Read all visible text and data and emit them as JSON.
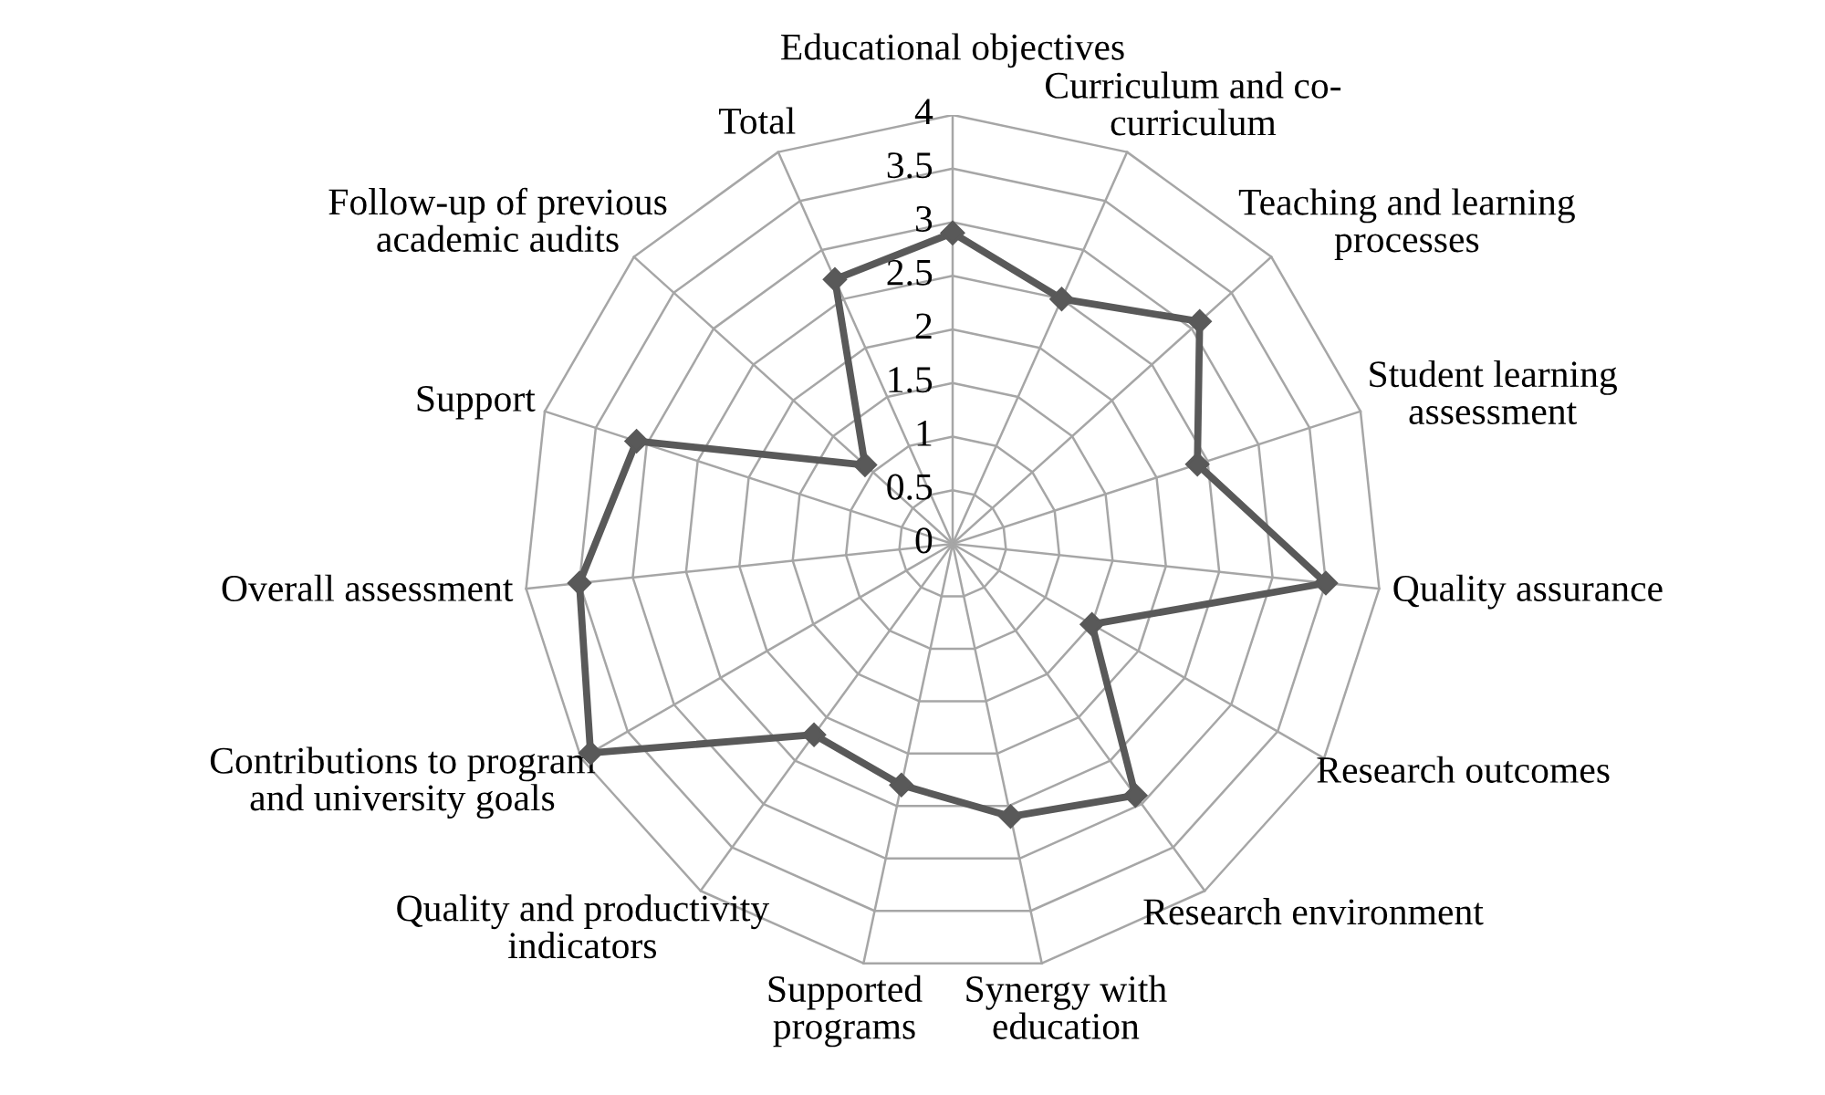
{
  "chart_data": {
    "type": "radar",
    "categories": [
      "Educational objectives",
      "Curriculum and co-\ncurriculum",
      "Teaching and learning\nprocesses",
      "Student learning\nassessment",
      "Quality assurance",
      "Research outcomes",
      "Research environment",
      "Synergy with\neducation",
      "Supported\nprograms",
      "Quality and productivity\nindicators",
      "Contributions to program\nand university goals",
      "Overall assessment",
      "Support",
      "Follow-up of previous\nacademic audits",
      "Total"
    ],
    "series": [
      {
        "color": "#595959",
        "values": [
          2.9,
          2.5,
          3.1,
          2.4,
          3.5,
          1.5,
          2.9,
          2.6,
          2.3,
          2.2,
          3.9,
          3.5,
          3.1,
          1.1,
          2.7
        ]
      }
    ],
    "ylim": [
      0,
      4
    ],
    "yticks": [
      0,
      0.5,
      1,
      1.5,
      2,
      2.5,
      3,
      3.5,
      4
    ],
    "marker": "diamond",
    "grid": true
  }
}
